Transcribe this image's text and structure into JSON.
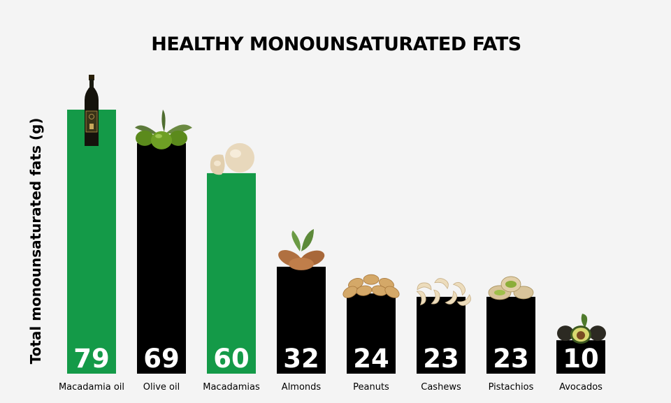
{
  "chart_data": {
    "type": "bar",
    "title": "HEALTHY MONOUNSATURATED FATS",
    "ylabel": "Total monounsaturated fats (g)",
    "xlabel": "",
    "categories": [
      "Macadamia oil",
      "Olive oil",
      "Macadamias",
      "Almonds",
      "Peanuts",
      "Cashews",
      "Pistachios",
      "Avocados"
    ],
    "values": [
      79,
      69,
      60,
      32,
      24,
      23,
      23,
      10
    ],
    "bar_colors": [
      "#149a48",
      "#000000",
      "#149a48",
      "#000000",
      "#000000",
      "#000000",
      "#000000",
      "#000000"
    ],
    "ylim": [
      0,
      79
    ],
    "grid": false,
    "legend": "none",
    "icons": [
      "oil-bottle-icon",
      "olives-icon",
      "macadamia-nuts-icon",
      "almonds-icon",
      "peanuts-icon",
      "cashews-icon",
      "pistachios-icon",
      "avocado-icon"
    ]
  }
}
